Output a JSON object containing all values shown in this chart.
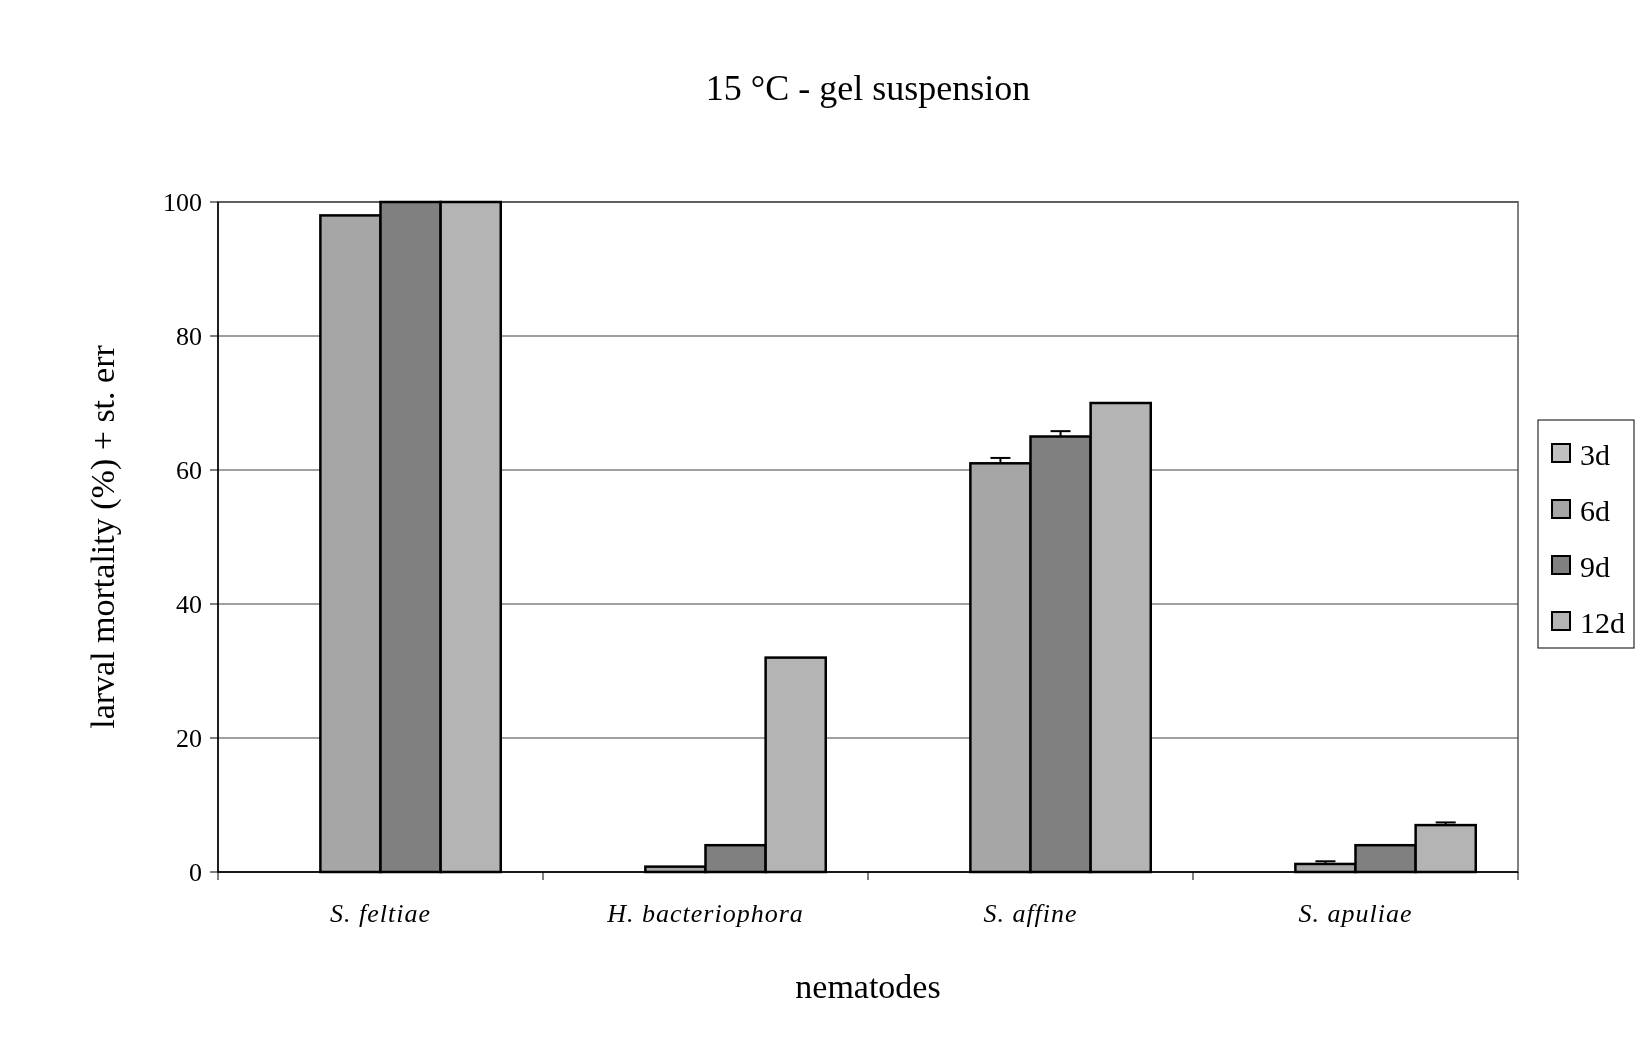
{
  "chart_data": {
    "type": "bar",
    "title": "15 °C - gel suspension",
    "xlabel": "nematodes",
    "ylabel": "larval mortality (%) + st. err",
    "categories": [
      "S. feltiae",
      "H. bacteriophora",
      "S. affine",
      "S. apuliae"
    ],
    "series": [
      {
        "name": "3d",
        "color": "#c0c0c0",
        "values": [
          0,
          0,
          0,
          0
        ]
      },
      {
        "name": "6d",
        "color": "#a6a6a6",
        "values": [
          98,
          0.8,
          61,
          1.2
        ],
        "errors": [
          null,
          null,
          0.8,
          0.4
        ]
      },
      {
        "name": "9d",
        "color": "#808080",
        "values": [
          100,
          4,
          65,
          4
        ],
        "errors": [
          null,
          null,
          0.8,
          null
        ]
      },
      {
        "name": "12d",
        "color": "#b4b4b4",
        "values": [
          100,
          32,
          70,
          7
        ],
        "errors": [
          null,
          null,
          null,
          0.4
        ]
      }
    ],
    "ylim": [
      0,
      100
    ],
    "yticks": [
      0,
      20,
      40,
      60,
      80,
      100
    ],
    "grid": "y",
    "legend": "right"
  }
}
